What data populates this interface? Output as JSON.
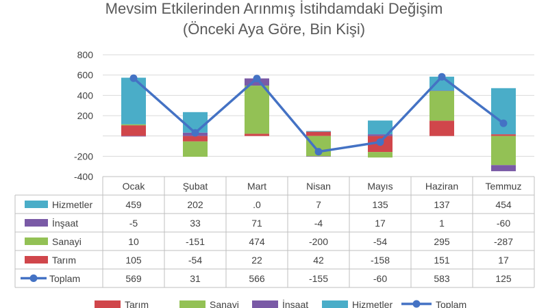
{
  "colors": {
    "tarim": "#d0464b",
    "sanayi": "#93c155",
    "insaat": "#7a5aa6",
    "hizmetler": "#4aadc8",
    "toplam": "#4472c4",
    "grid": "#d9d9d9",
    "axis": "#bfbfbf"
  },
  "chart_data": {
    "type": "bar",
    "stacked": true,
    "title": "Mevsim Etkilerinden Arınmış İstihdamdaki Değişim",
    "subtitle": "(Önceki Aya Göre, Bin Kişi)",
    "categories": [
      "Ocak",
      "Şubat",
      "Mart",
      "Nisan",
      "Mayıs",
      "Haziran",
      "Temmuz"
    ],
    "ylim": [
      -400,
      800
    ],
    "yticks": [
      "800",
      "600",
      "400",
      "200",
      "",
      "-200",
      "-400"
    ],
    "ytick_values": [
      800,
      600,
      400,
      200,
      0,
      -200,
      -400
    ],
    "grid": true,
    "legend_position": "bottom",
    "series": [
      {
        "key": "tarim",
        "name": "Tarım",
        "type": "bar",
        "values": [
          105,
          -54,
          22,
          42,
          -158,
          151,
          17
        ]
      },
      {
        "key": "sanayi",
        "name": "Sanayi",
        "type": "bar",
        "values": [
          10,
          -151,
          474,
          -200,
          -54,
          295,
          -287
        ]
      },
      {
        "key": "insaat",
        "name": "İnşaat",
        "type": "bar",
        "values": [
          -5,
          33,
          71,
          -4,
          17,
          1,
          -60
        ]
      },
      {
        "key": "hizmetler",
        "name": "Hizmetler",
        "type": "bar",
        "values": [
          459,
          202,
          0,
          7,
          135,
          137,
          454
        ]
      },
      {
        "key": "toplam",
        "name": "Toplam",
        "type": "line",
        "values": [
          569,
          31,
          566,
          -155,
          -60,
          583,
          125
        ]
      }
    ],
    "table": {
      "row_order": [
        "hizmetler",
        "insaat",
        "sanayi",
        "tarim",
        "toplam"
      ],
      "rows": {
        "hizmetler": [
          "459",
          "202",
          ".0",
          "7",
          "135",
          "137",
          "454"
        ],
        "insaat": [
          "-5",
          "33",
          "71",
          "-4",
          "17",
          "1",
          "-60"
        ],
        "sanayi": [
          "10",
          "-151",
          "474",
          "-200",
          "-54",
          "295",
          "-287"
        ],
        "tarim": [
          "105",
          "-54",
          "22",
          "42",
          "-158",
          "151",
          "17"
        ],
        "toplam": [
          "569",
          "31",
          "566",
          "-155",
          "-60",
          "583",
          "125"
        ]
      }
    },
    "legend_order": [
      "tarim",
      "sanayi",
      "insaat",
      "hizmetler",
      "toplam"
    ]
  }
}
